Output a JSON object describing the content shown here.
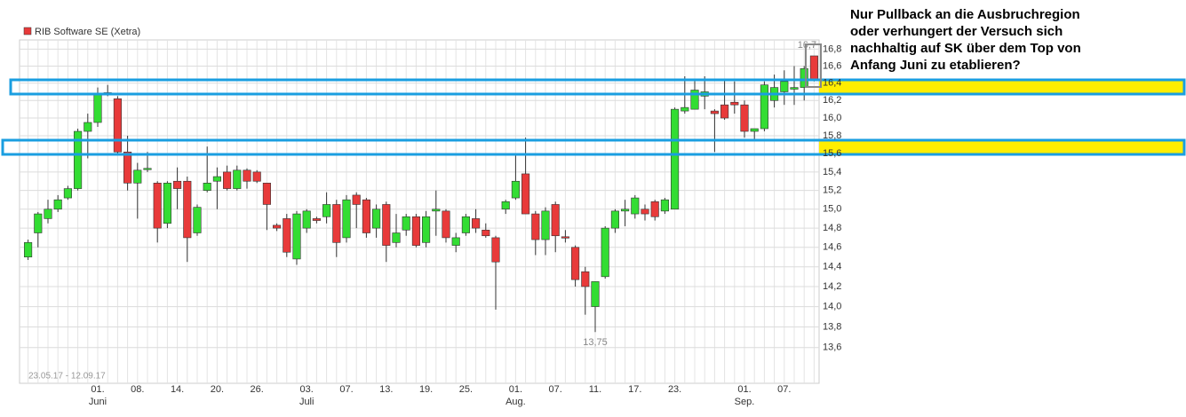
{
  "note_lines": [
    "Nur Pullback an die Ausbruchregion",
    "oder verhungert der Versuch sich",
    "nachhaltig auf SK über dem Top von",
    "Anfang Juni zu etablieren?"
  ],
  "chart_data": {
    "type": "candlestick",
    "legend": "RIB Software SE (Xetra)",
    "date_range": "23.05.17 - 12.09.17",
    "log": true,
    "grid": true,
    "up_color": "#33dd33",
    "down_color": "#e83a3a",
    "legend_color": "#e83a3a",
    "categories": [
      null,
      null,
      null,
      null,
      null,
      null,
      null,
      "01.",
      null,
      null,
      null,
      "08.",
      null,
      null,
      null,
      "14.",
      null,
      null,
      null,
      "20.",
      null,
      null,
      null,
      "26.",
      null,
      null,
      null,
      null,
      "03.",
      null,
      null,
      null,
      "07.",
      null,
      null,
      null,
      "13.",
      null,
      null,
      null,
      "19.",
      null,
      null,
      null,
      "25.",
      null,
      null,
      null,
      null,
      "01.",
      null,
      null,
      null,
      "07.",
      null,
      null,
      null,
      "11.",
      null,
      null,
      null,
      "17.",
      null,
      null,
      null,
      "23.",
      null,
      null,
      null,
      null,
      null,
      null,
      "01.",
      null,
      null,
      null,
      "07.",
      null,
      null,
      null
    ],
    "months": [
      null,
      null,
      null,
      null,
      null,
      null,
      null,
      "Juni",
      null,
      null,
      null,
      null,
      null,
      null,
      null,
      null,
      null,
      null,
      null,
      null,
      null,
      null,
      null,
      null,
      null,
      null,
      null,
      null,
      "Juli",
      null,
      null,
      null,
      null,
      null,
      null,
      null,
      null,
      null,
      null,
      null,
      null,
      null,
      null,
      null,
      null,
      null,
      null,
      null,
      null,
      "Aug.",
      null,
      null,
      null,
      null,
      null,
      null,
      null,
      null,
      null,
      null,
      null,
      null,
      null,
      null,
      null,
      null,
      null,
      null,
      null,
      null,
      null,
      null,
      "Sep.",
      null,
      null,
      null,
      null,
      null,
      null,
      null
    ],
    "open": [
      14.5,
      14.75,
      14.9,
      15.0,
      15.12,
      15.22,
      15.85,
      15.95,
      16.27,
      16.22,
      15.62,
      15.28,
      15.43,
      15.28,
      14.85,
      15.3,
      15.3,
      14.75,
      15.2,
      15.3,
      15.4,
      15.22,
      15.42,
      15.4,
      15.28,
      14.83,
      14.9,
      14.48,
      14.8,
      14.9,
      14.92,
      15.05,
      14.7,
      15.15,
      15.1,
      14.8,
      15.05,
      14.65,
      14.78,
      14.92,
      14.65,
      14.98,
      14.98,
      14.62,
      14.75,
      14.9,
      14.78,
      14.7,
      15.0,
      15.12,
      15.38,
      14.95,
      14.68,
      15.05,
      14.71,
      14.6,
      14.35,
      14.0,
      14.3,
      14.8,
      14.98,
      14.95,
      15.0,
      15.08,
      14.98,
      15.0,
      16.08,
      16.1,
      16.25,
      16.08,
      16.15,
      16.18,
      16.15,
      15.85,
      15.88,
      16.2,
      16.3,
      16.33,
      16.35,
      16.72
    ],
    "high": [
      14.68,
      14.97,
      15.1,
      15.15,
      15.25,
      15.88,
      16.05,
      16.35,
      16.38,
      16.25,
      15.8,
      15.5,
      15.62,
      15.3,
      15.3,
      15.45,
      15.35,
      15.05,
      15.68,
      15.45,
      15.47,
      15.47,
      15.44,
      15.42,
      15.28,
      14.85,
      14.95,
      14.98,
      15.0,
      14.92,
      15.18,
      15.1,
      15.15,
      15.18,
      15.12,
      15.05,
      15.08,
      14.95,
      14.95,
      14.95,
      14.98,
      15.2,
      15.0,
      14.75,
      14.95,
      15.0,
      14.85,
      14.72,
      15.1,
      15.6,
      15.78,
      14.98,
      15.02,
      15.08,
      14.78,
      14.62,
      14.4,
      14.25,
      14.82,
      15.0,
      15.1,
      15.15,
      15.05,
      15.1,
      15.12,
      16.12,
      16.48,
      16.45,
      16.48,
      16.1,
      16.45,
      16.42,
      16.2,
      15.88,
      16.42,
      16.5,
      16.55,
      16.6,
      16.6,
      16.72
    ],
    "low": [
      14.47,
      14.6,
      14.85,
      14.97,
      15.1,
      15.2,
      15.55,
      15.9,
      16.25,
      15.6,
      15.2,
      14.9,
      15.4,
      14.65,
      14.8,
      15.0,
      14.45,
      14.72,
      15.18,
      15.0,
      15.2,
      15.2,
      15.22,
      15.28,
      14.78,
      14.77,
      14.5,
      14.42,
      14.75,
      14.85,
      14.85,
      14.5,
      14.65,
      14.8,
      14.7,
      14.7,
      14.45,
      14.6,
      14.72,
      14.6,
      14.6,
      14.72,
      14.65,
      14.55,
      14.72,
      14.75,
      14.7,
      13.97,
      14.95,
      15.1,
      14.95,
      14.52,
      14.52,
      14.55,
      14.65,
      14.2,
      13.92,
      13.75,
      14.28,
      14.75,
      14.82,
      14.9,
      14.88,
      14.88,
      14.95,
      15.0,
      16.05,
      16.1,
      16.1,
      15.62,
      15.98,
      16.05,
      15.78,
      15.75,
      15.85,
      16.12,
      16.15,
      16.15,
      16.2,
      16.42
    ],
    "close": [
      14.65,
      14.95,
      15.0,
      15.1,
      15.22,
      15.85,
      15.95,
      16.27,
      16.29,
      15.62,
      15.28,
      15.42,
      15.44,
      14.8,
      15.28,
      15.22,
      14.7,
      15.02,
      15.28,
      15.35,
      15.22,
      15.42,
      15.3,
      15.3,
      15.05,
      14.8,
      14.55,
      14.95,
      14.98,
      14.88,
      15.05,
      14.65,
      15.1,
      15.05,
      14.75,
      15.0,
      14.62,
      14.75,
      14.92,
      14.62,
      14.92,
      15.0,
      14.7,
      14.7,
      14.92,
      14.8,
      14.72,
      14.45,
      15.08,
      15.3,
      14.95,
      14.68,
      14.98,
      14.72,
      14.7,
      14.27,
      14.2,
      14.25,
      14.8,
      14.98,
      15.0,
      15.12,
      14.95,
      14.92,
      15.1,
      16.1,
      16.12,
      16.32,
      16.3,
      16.05,
      16.0,
      16.15,
      15.85,
      15.88,
      16.38,
      16.35,
      16.42,
      16.35,
      16.57,
      16.45
    ],
    "annotations": [
      {
        "value": 13.75,
        "label": "13,75"
      },
      {
        "value": 16.72,
        "label": "16,7"
      }
    ],
    "ylim": [
      13.26,
      16.91
    ],
    "yticks": [
      {
        "value": 13.6,
        "label": "13,6"
      },
      {
        "value": 13.8,
        "label": "13,8"
      },
      {
        "value": 14.0,
        "label": "14,0"
      },
      {
        "value": 14.2,
        "label": "14,2"
      },
      {
        "value": 14.4,
        "label": "14,4"
      },
      {
        "value": 14.6,
        "label": "14,6"
      },
      {
        "value": 14.8,
        "label": "14,8"
      },
      {
        "value": 15.0,
        "label": "15,0"
      },
      {
        "value": 15.2,
        "label": "15,2"
      },
      {
        "value": 15.4,
        "label": "15,4"
      },
      {
        "value": 15.6,
        "label": "15,6"
      },
      {
        "value": 15.8,
        "label": "15,8"
      },
      {
        "value": 16.0,
        "label": "16,0"
      },
      {
        "value": 16.2,
        "label": "16,2"
      },
      {
        "value": 16.4,
        "label": "16,4"
      },
      {
        "value": 16.6,
        "label": "16,6"
      },
      {
        "value": 16.8,
        "label": "16,8"
      }
    ]
  }
}
